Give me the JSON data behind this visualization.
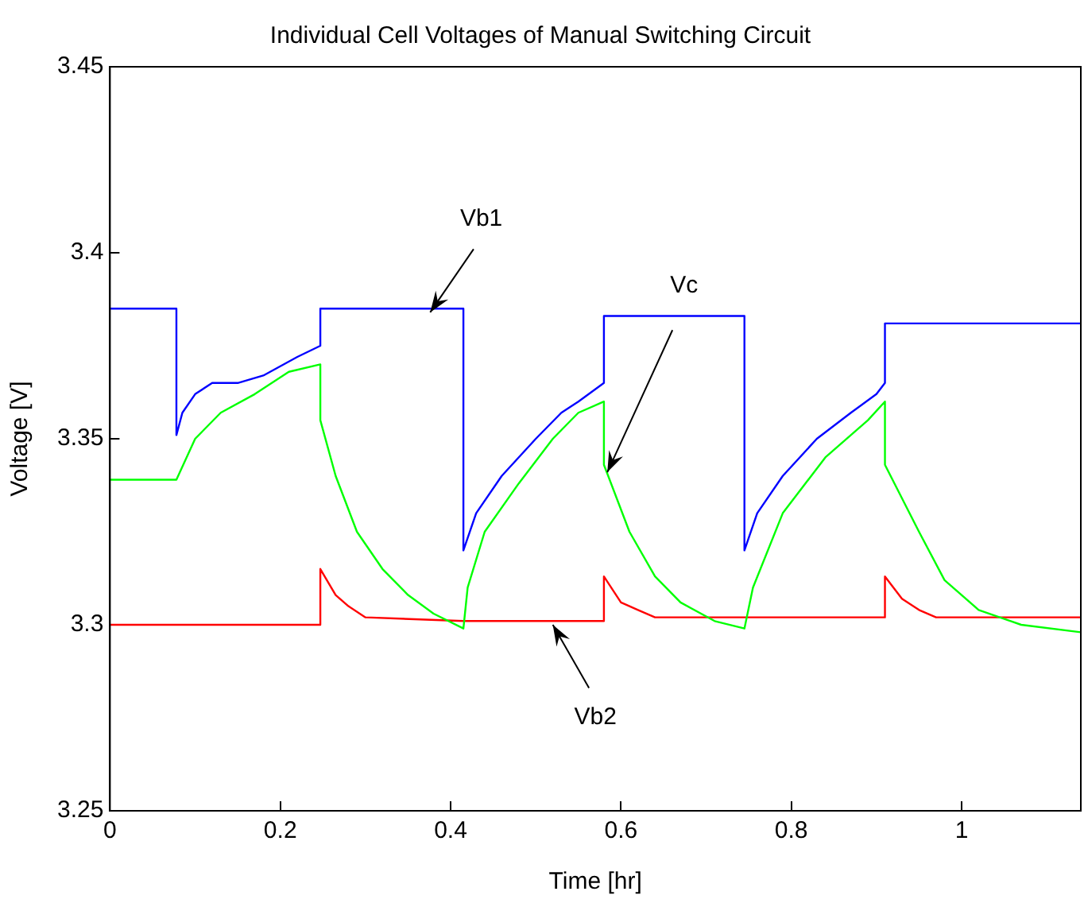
{
  "chart_data": {
    "type": "line",
    "title": "Individual Cell Voltages of Manual Switching Circuit",
    "xlabel": "Time [hr]",
    "ylabel": "Voltage [V]",
    "xlim": [
      0,
      1.14
    ],
    "ylim": [
      3.25,
      3.45
    ],
    "xticks": [
      0,
      0.2,
      0.4,
      0.6,
      0.8,
      1
    ],
    "yticks": [
      3.25,
      3.3,
      3.35,
      3.4,
      3.45
    ],
    "grid": false,
    "legend": false,
    "marker": "none",
    "line_style": "solid",
    "series": [
      {
        "color": "#0000ff",
        "x": [
          0,
          0.078,
          0.078,
          0.085,
          0.1,
          0.12,
          0.15,
          0.18,
          0.22,
          0.247,
          0.247,
          0.415,
          0.415,
          0.43,
          0.46,
          0.5,
          0.53,
          0.55,
          0.58,
          0.58,
          0.745,
          0.745,
          0.76,
          0.79,
          0.83,
          0.87,
          0.9,
          0.91,
          0.91,
          1.14
        ],
        "values": [
          3.385,
          3.385,
          3.351,
          3.357,
          3.362,
          3.365,
          3.365,
          3.367,
          3.372,
          3.375,
          3.385,
          3.385,
          3.32,
          3.33,
          3.34,
          3.35,
          3.357,
          3.36,
          3.365,
          3.383,
          3.383,
          3.32,
          3.33,
          3.34,
          3.35,
          3.357,
          3.362,
          3.365,
          3.381,
          3.381
        ]
      },
      {
        "color": "#00ff00",
        "x": [
          0,
          0.078,
          0.1,
          0.13,
          0.17,
          0.21,
          0.247,
          0.247,
          0.265,
          0.29,
          0.32,
          0.35,
          0.38,
          0.415,
          0.42,
          0.44,
          0.48,
          0.52,
          0.55,
          0.58,
          0.58,
          0.61,
          0.64,
          0.67,
          0.71,
          0.745,
          0.755,
          0.79,
          0.84,
          0.89,
          0.91,
          0.91,
          0.95,
          0.98,
          1.02,
          1.07,
          1.14
        ],
        "values": [
          3.339,
          3.339,
          3.35,
          3.357,
          3.362,
          3.368,
          3.37,
          3.355,
          3.34,
          3.325,
          3.315,
          3.308,
          3.303,
          3.299,
          3.31,
          3.325,
          3.338,
          3.35,
          3.357,
          3.36,
          3.343,
          3.325,
          3.313,
          3.306,
          3.301,
          3.299,
          3.31,
          3.33,
          3.345,
          3.355,
          3.36,
          3.343,
          3.325,
          3.312,
          3.304,
          3.3,
          3.298
        ]
      },
      {
        "color": "#ff0000",
        "x": [
          0,
          0.247,
          0.247,
          0.265,
          0.28,
          0.3,
          0.415,
          0.58,
          0.58,
          0.6,
          0.62,
          0.64,
          0.745,
          0.91,
          0.91,
          0.93,
          0.95,
          0.97,
          1.14
        ],
        "values": [
          3.3,
          3.3,
          3.315,
          3.308,
          3.305,
          3.302,
          3.301,
          3.301,
          3.313,
          3.306,
          3.304,
          3.302,
          3.302,
          3.302,
          3.313,
          3.307,
          3.304,
          3.302,
          3.302
        ]
      }
    ],
    "annotations": [
      {
        "text": "Vb1",
        "x": 0.376,
        "y": 3.384
      },
      {
        "text": "Vc",
        "x": 0.584,
        "y": 3.341
      },
      {
        "text": "Vb2",
        "x": 0.52,
        "y": 3.3
      }
    ]
  }
}
